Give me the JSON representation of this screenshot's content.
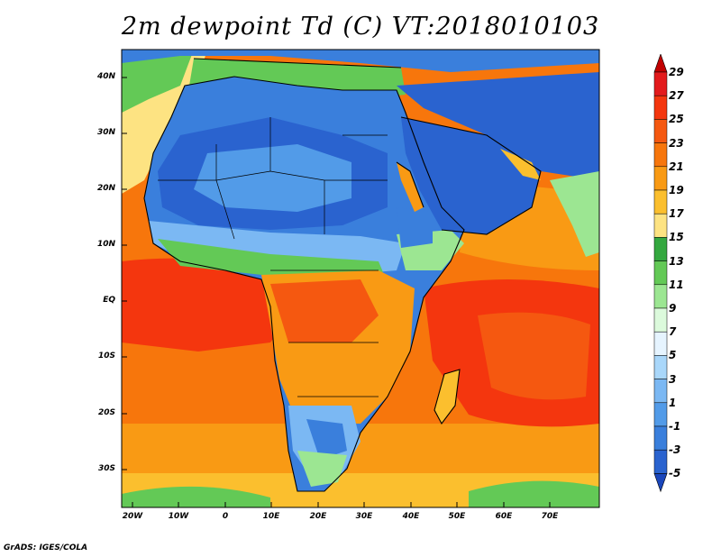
{
  "title": "2m dewpoint Td (C) VT:2018010103",
  "footer": "GrADS: IGES/COLA",
  "lat_labels": [
    "40N",
    "30N",
    "20N",
    "10N",
    "EQ",
    "10S",
    "20S",
    "30S"
  ],
  "lon_labels": [
    "20W",
    "10W",
    "0",
    "10E",
    "20E",
    "30E",
    "40E",
    "50E",
    "60E",
    "70E"
  ],
  "colorbar": {
    "levels": [
      "29",
      "27",
      "25",
      "23",
      "21",
      "19",
      "17",
      "15",
      "13",
      "11",
      "9",
      "7",
      "5",
      "3",
      "1",
      "-1",
      "-3",
      "-5"
    ],
    "colors": [
      "#c10000",
      "#e31a1c",
      "#f4360e",
      "#f55810",
      "#f7760c",
      "#f99a14",
      "#fbbf2e",
      "#fde382",
      "#34a83f",
      "#63c956",
      "#9ce692",
      "#dcfadc",
      "#e6f4ff",
      "#a9d7fa",
      "#7bb8f3",
      "#529be8",
      "#3a7fdc",
      "#2a63cf",
      "#1a46bb"
    ]
  }
}
